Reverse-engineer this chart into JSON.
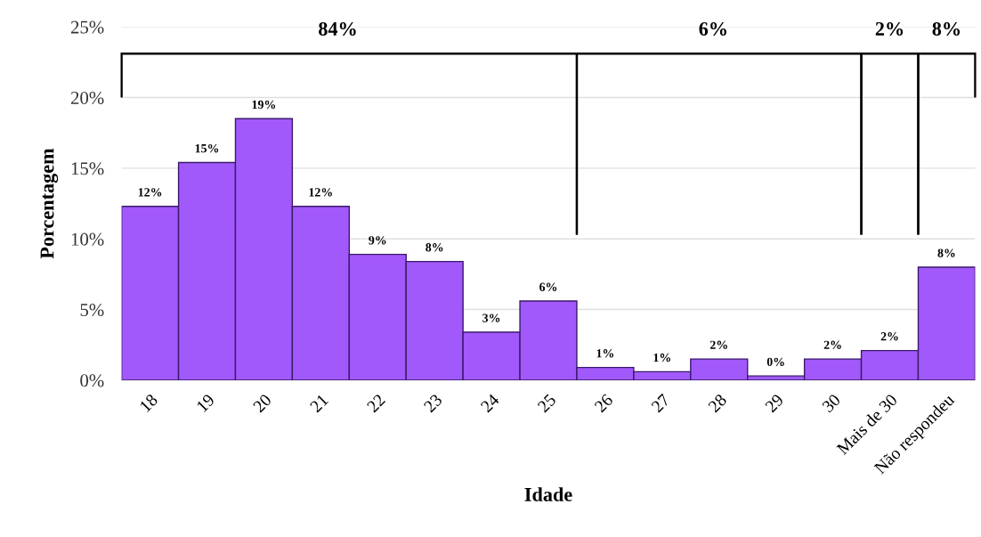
{
  "chart_data": {
    "type": "bar",
    "xlabel": "Idade",
    "ylabel": "Porcentagem",
    "categories": [
      "18",
      "19",
      "20",
      "21",
      "22",
      "23",
      "24",
      "25",
      "26",
      "27",
      "28",
      "29",
      "30",
      "Mais de 30",
      "Não respondeu"
    ],
    "values": [
      12.3,
      15.4,
      18.5,
      12.3,
      8.9,
      8.4,
      3.4,
      5.6,
      0.9,
      0.6,
      1.5,
      0.3,
      1.5,
      2.1,
      8.0
    ],
    "value_labels": [
      "12%",
      "15%",
      "19%",
      "12%",
      "9%",
      "8%",
      "3%",
      "6%",
      "1%",
      "1%",
      "2%",
      "0%",
      "2%",
      "2%",
      "8%"
    ],
    "color": "#a259fb",
    "ylim": [
      0,
      25
    ],
    "yticks": [
      {
        "value": 0,
        "label": "0%"
      },
      {
        "value": 5,
        "label": "5%"
      },
      {
        "value": 10,
        "label": "10%"
      },
      {
        "value": 15,
        "label": "15%"
      },
      {
        "value": 20,
        "label": "20%"
      },
      {
        "value": 25,
        "label": "25%"
      }
    ],
    "grid": "y",
    "annotations": [
      "84%",
      "6%",
      "2%",
      "8%"
    ]
  }
}
